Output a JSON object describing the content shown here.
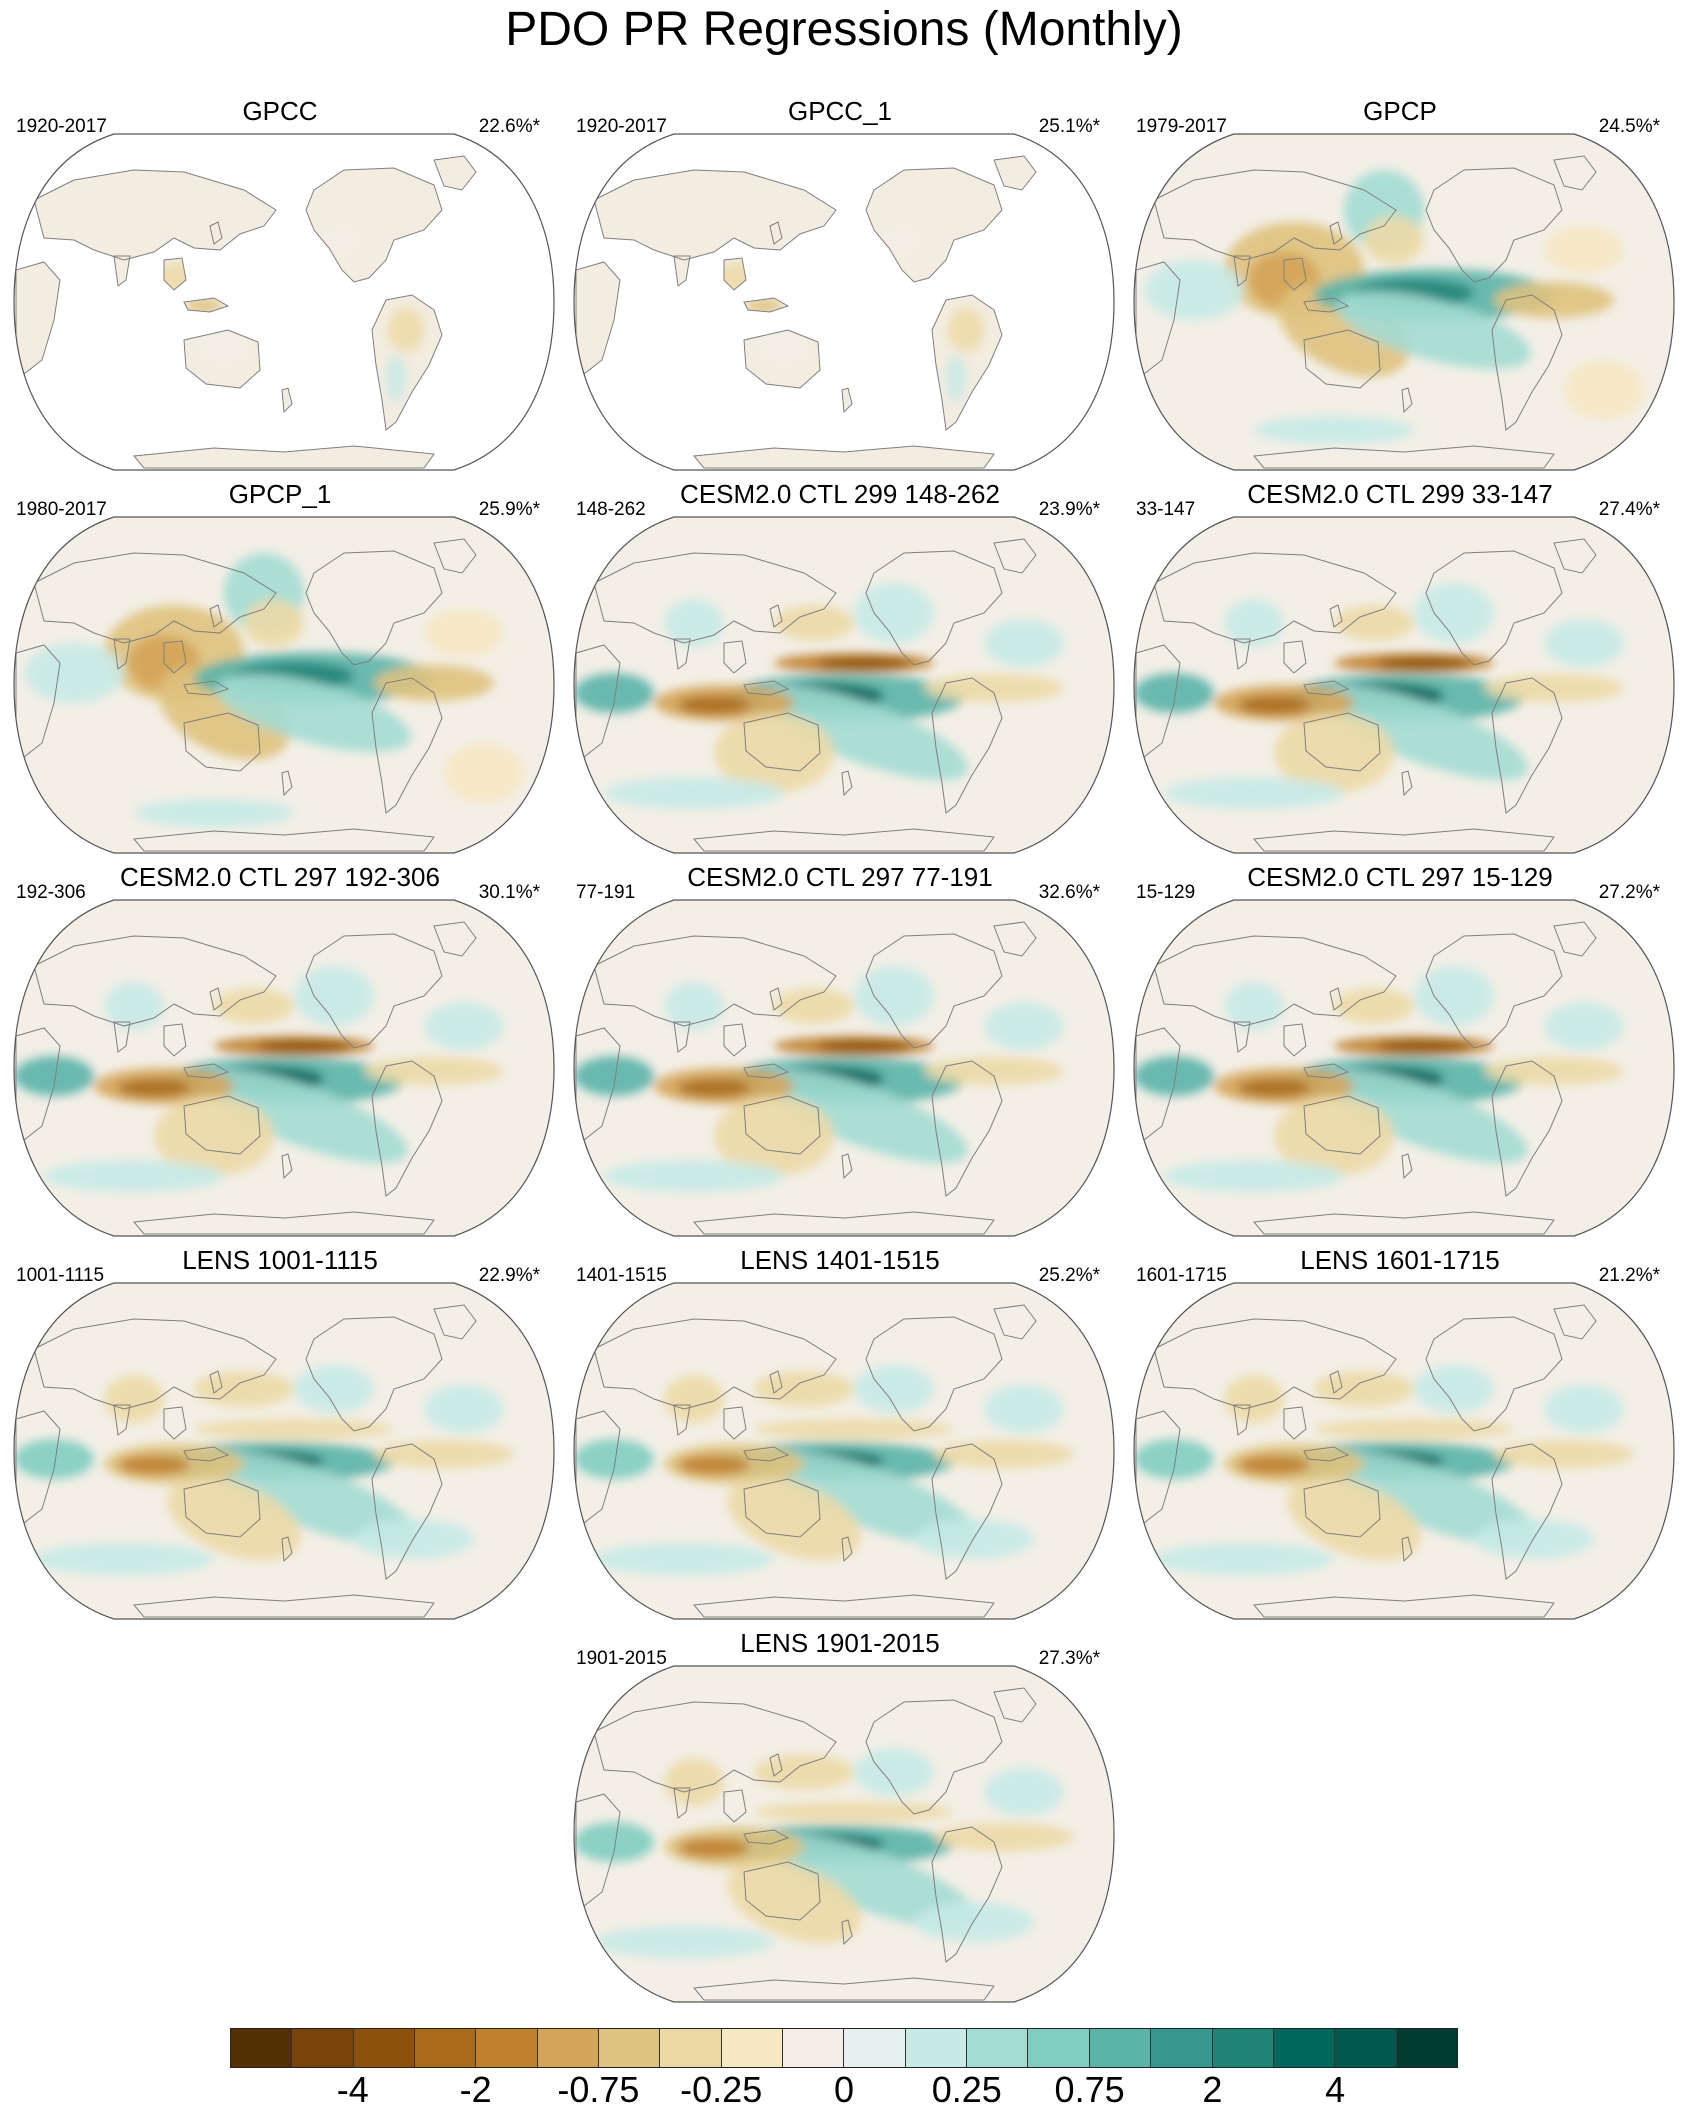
{
  "title": "PDO PR Regressions (Monthly)",
  "panels": [
    {
      "title": "GPCC",
      "years": "1920-2017",
      "percent": "22.6%*",
      "coverage": "land",
      "pattern": 0
    },
    {
      "title": "GPCC_1",
      "years": "1920-2017",
      "percent": "25.1%*",
      "coverage": "land",
      "pattern": 0
    },
    {
      "title": "GPCP",
      "years": "1979-2017",
      "percent": "24.5%*",
      "coverage": "global",
      "pattern": 1
    },
    {
      "title": "GPCP_1",
      "years": "1980-2017",
      "percent": "25.9%*",
      "coverage": "global",
      "pattern": 1
    },
    {
      "title": "CESM2.0 CTL 299 148-262",
      "years": "148-262",
      "percent": "23.9%*",
      "coverage": "global",
      "pattern": 2
    },
    {
      "title": "CESM2.0 CTL 299 33-147",
      "years": "33-147",
      "percent": "27.4%*",
      "coverage": "global",
      "pattern": 2
    },
    {
      "title": "CESM2.0 CTL 297 192-306",
      "years": "192-306",
      "percent": "30.1%*",
      "coverage": "global",
      "pattern": 2
    },
    {
      "title": "CESM2.0 CTL 297 77-191",
      "years": "77-191",
      "percent": "32.6%*",
      "coverage": "global",
      "pattern": 2
    },
    {
      "title": "CESM2.0 CTL 297 15-129",
      "years": "15-129",
      "percent": "27.2%*",
      "coverage": "global",
      "pattern": 2
    },
    {
      "title": "LENS 1001-1115",
      "years": "1001-1115",
      "percent": "22.9%*",
      "coverage": "global",
      "pattern": 3
    },
    {
      "title": "LENS 1401-1515",
      "years": "1401-1515",
      "percent": "25.2%*",
      "coverage": "global",
      "pattern": 3
    },
    {
      "title": "LENS 1601-1715",
      "years": "1601-1715",
      "percent": "21.2%*",
      "coverage": "global",
      "pattern": 3
    },
    {
      "title": "LENS 1901-2015",
      "years": "1901-2015",
      "percent": "27.3%*",
      "coverage": "global",
      "pattern": 3
    }
  ],
  "colorbar": {
    "labels": [
      "-4",
      "-2",
      "-0.75",
      "-0.25",
      "0",
      "0.25",
      "0.75",
      "2",
      "4"
    ],
    "colors": [
      "#543005",
      "#7a4409",
      "#8c510a",
      "#a96a1c",
      "#bf812d",
      "#d4a458",
      "#dfc27d",
      "#ecd9a6",
      "#f6e8c3",
      "#f3efe6",
      "#e4f1ee",
      "#c7eae5",
      "#a3dcd3",
      "#80cdc1",
      "#5ab4a8",
      "#35978f",
      "#208478",
      "#01665e",
      "#00574f",
      "#003c30"
    ]
  },
  "colors": {
    "land_outline": "#7f7f7f",
    "map_border": "#555555",
    "background_field": "#f3efe6"
  }
}
